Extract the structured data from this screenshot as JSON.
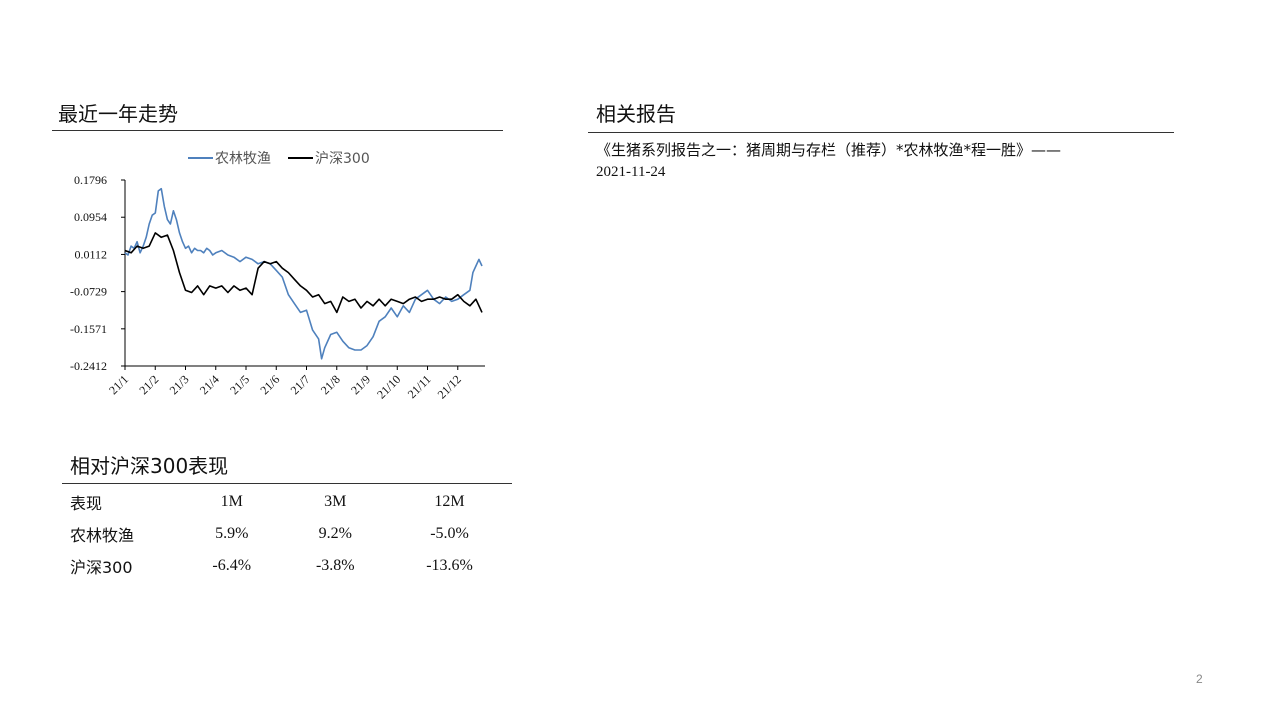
{
  "trend_section": {
    "title": "最近一年走势"
  },
  "reports_section": {
    "title": "相关报告",
    "items": [
      {
        "text": "《生猪系列报告之一：猪周期与存栏（推荐）*农林牧渔*程一胜》——",
        "date": "2021-11-24"
      }
    ]
  },
  "relative_section": {
    "title": "相对沪深300表现",
    "headers": [
      "表现",
      "1M",
      "3M",
      "12M"
    ],
    "rows": [
      {
        "label": "农林牧渔",
        "values": [
          "5.9%",
          "9.2%",
          "-5.0%"
        ]
      },
      {
        "label": "沪深300",
        "values": [
          "-6.4%",
          "-3.8%",
          "-13.6%"
        ]
      }
    ]
  },
  "page_number": "2",
  "chart_data": {
    "type": "line",
    "title": "",
    "xlabel": "",
    "ylabel": "",
    "yticks": [
      "0.1796",
      "0.0954",
      "0.0112",
      "-0.0729",
      "-0.1571",
      "-0.2412"
    ],
    "ylim": [
      -0.2412,
      0.1796
    ],
    "xticks": [
      "21/1",
      "21/2",
      "21/3",
      "21/4",
      "21/5",
      "21/6",
      "21/7",
      "21/8",
      "21/9",
      "21/10",
      "21/11",
      "21/12"
    ],
    "legend": "top-center",
    "grid": false,
    "series": [
      {
        "name": "农林牧渔",
        "color": "#4f81bd",
        "x": [
          0,
          0.1,
          0.2,
          0.3,
          0.4,
          0.5,
          0.6,
          0.7,
          0.8,
          0.9,
          1.0,
          1.1,
          1.2,
          1.3,
          1.4,
          1.5,
          1.6,
          1.7,
          1.8,
          1.9,
          2.0,
          2.1,
          2.2,
          2.3,
          2.4,
          2.5,
          2.6,
          2.7,
          2.8,
          2.9,
          3.0,
          3.2,
          3.4,
          3.6,
          3.8,
          4.0,
          4.2,
          4.4,
          4.6,
          4.8,
          5.0,
          5.2,
          5.4,
          5.6,
          5.8,
          6.0,
          6.2,
          6.4,
          6.5,
          6.6,
          6.8,
          7.0,
          7.2,
          7.4,
          7.6,
          7.8,
          8.0,
          8.2,
          8.4,
          8.6,
          8.8,
          9.0,
          9.2,
          9.4,
          9.6,
          9.8,
          10.0,
          10.2,
          10.4,
          10.6,
          10.8,
          11.0,
          11.2,
          11.4,
          11.5,
          11.6,
          11.7,
          11.8
        ],
        "values": [
          0.015,
          0.01,
          0.03,
          0.025,
          0.04,
          0.015,
          0.03,
          0.05,
          0.08,
          0.1,
          0.105,
          0.155,
          0.16,
          0.12,
          0.09,
          0.08,
          0.11,
          0.09,
          0.06,
          0.04,
          0.025,
          0.03,
          0.015,
          0.025,
          0.02,
          0.02,
          0.015,
          0.025,
          0.02,
          0.01,
          0.015,
          0.02,
          0.01,
          0.005,
          -0.005,
          0.005,
          0.0,
          -0.01,
          -0.005,
          -0.01,
          -0.025,
          -0.04,
          -0.08,
          -0.1,
          -0.12,
          -0.115,
          -0.16,
          -0.18,
          -0.225,
          -0.2,
          -0.17,
          -0.165,
          -0.185,
          -0.2,
          -0.205,
          -0.205,
          -0.195,
          -0.175,
          -0.14,
          -0.13,
          -0.11,
          -0.13,
          -0.105,
          -0.12,
          -0.09,
          -0.08,
          -0.07,
          -0.09,
          -0.1,
          -0.085,
          -0.095,
          -0.09,
          -0.08,
          -0.07,
          -0.03,
          -0.015,
          0.0,
          -0.015
        ]
      },
      {
        "name": "沪深300",
        "color": "#000000",
        "x": [
          0,
          0.2,
          0.4,
          0.6,
          0.8,
          1.0,
          1.2,
          1.4,
          1.6,
          1.8,
          2.0,
          2.2,
          2.4,
          2.6,
          2.8,
          3.0,
          3.2,
          3.4,
          3.6,
          3.8,
          4.0,
          4.2,
          4.4,
          4.6,
          4.8,
          5.0,
          5.2,
          5.4,
          5.6,
          5.8,
          6.0,
          6.2,
          6.4,
          6.6,
          6.8,
          7.0,
          7.2,
          7.4,
          7.6,
          7.8,
          8.0,
          8.2,
          8.4,
          8.6,
          8.8,
          9.0,
          9.2,
          9.4,
          9.6,
          9.8,
          10.0,
          10.2,
          10.4,
          10.6,
          10.8,
          11.0,
          11.2,
          11.4,
          11.6,
          11.8
        ],
        "values": [
          0.02,
          0.015,
          0.03,
          0.025,
          0.03,
          0.06,
          0.05,
          0.055,
          0.02,
          -0.03,
          -0.07,
          -0.075,
          -0.06,
          -0.08,
          -0.06,
          -0.065,
          -0.06,
          -0.075,
          -0.06,
          -0.07,
          -0.065,
          -0.08,
          -0.02,
          -0.005,
          -0.01,
          -0.005,
          -0.02,
          -0.03,
          -0.045,
          -0.06,
          -0.07,
          -0.085,
          -0.08,
          -0.1,
          -0.095,
          -0.12,
          -0.085,
          -0.095,
          -0.09,
          -0.11,
          -0.095,
          -0.105,
          -0.09,
          -0.105,
          -0.09,
          -0.095,
          -0.1,
          -0.09,
          -0.085,
          -0.095,
          -0.09,
          -0.09,
          -0.085,
          -0.09,
          -0.09,
          -0.08,
          -0.095,
          -0.105,
          -0.09,
          -0.12
        ]
      }
    ]
  }
}
